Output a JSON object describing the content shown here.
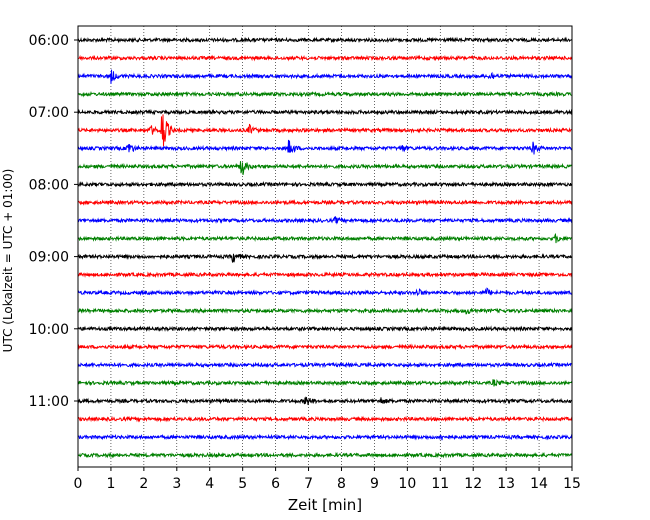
{
  "chart_data": {
    "type": "line",
    "title": "",
    "xlabel": "Zeit  [min]",
    "ylabel": "UTC (Lokalzeit = UTC + 01:00)",
    "xlim": [
      0,
      15
    ],
    "x_ticks": [
      "0",
      "1",
      "2",
      "3",
      "4",
      "5",
      "6",
      "7",
      "8",
      "9",
      "10",
      "11",
      "12",
      "13",
      "14",
      "15"
    ],
    "y_ticks": [
      "06:00",
      "07:00",
      "08:00",
      "09:00",
      "10:00",
      "11:00"
    ],
    "grid": "vertical dotted",
    "trace_interval_min": 15,
    "series_colors": [
      "#000000",
      "#ff0000",
      "#0000ff",
      "#008000"
    ],
    "traces": [
      {
        "start": "06:00",
        "color": "#000000",
        "events": []
      },
      {
        "start": "06:15",
        "color": "#ff0000",
        "events": []
      },
      {
        "start": "06:30",
        "color": "#0000ff",
        "events": [
          {
            "t": 1.0,
            "amp": 7
          },
          {
            "t": 12.5,
            "amp": 5
          }
        ]
      },
      {
        "start": "06:45",
        "color": "#008000",
        "events": []
      },
      {
        "start": "07:00",
        "color": "#000000",
        "events": []
      },
      {
        "start": "07:15",
        "color": "#ff0000",
        "events": [
          {
            "t": 2.55,
            "amp": 28
          },
          {
            "t": 2.2,
            "amp": 5
          },
          {
            "t": 5.2,
            "amp": 5
          }
        ]
      },
      {
        "start": "07:30",
        "color": "#0000ff",
        "events": [
          {
            "t": 1.5,
            "amp": 8
          },
          {
            "t": 6.4,
            "amp": 9
          },
          {
            "t": 9.8,
            "amp": 4
          },
          {
            "t": 13.8,
            "amp": 7
          }
        ]
      },
      {
        "start": "07:45",
        "color": "#008000",
        "events": [
          {
            "t": 4.95,
            "amp": 12
          }
        ]
      },
      {
        "start": "08:00",
        "color": "#000000",
        "events": []
      },
      {
        "start": "08:15",
        "color": "#ff0000",
        "events": []
      },
      {
        "start": "08:30",
        "color": "#0000ff",
        "events": [
          {
            "t": 7.8,
            "amp": 3
          }
        ]
      },
      {
        "start": "08:45",
        "color": "#008000",
        "events": [
          {
            "t": 14.5,
            "amp": 4
          }
        ]
      },
      {
        "start": "09:00",
        "color": "#000000",
        "events": [
          {
            "t": 4.7,
            "amp": 6
          }
        ]
      },
      {
        "start": "09:15",
        "color": "#ff0000",
        "events": []
      },
      {
        "start": "09:30",
        "color": "#0000ff",
        "events": [
          {
            "t": 10.3,
            "amp": 4
          },
          {
            "t": 12.4,
            "amp": 4
          }
        ]
      },
      {
        "start": "09:45",
        "color": "#008000",
        "events": [
          {
            "t": 11.8,
            "amp": 3
          }
        ]
      },
      {
        "start": "10:00",
        "color": "#000000",
        "events": []
      },
      {
        "start": "10:15",
        "color": "#ff0000",
        "events": []
      },
      {
        "start": "10:30",
        "color": "#0000ff",
        "events": []
      },
      {
        "start": "10:45",
        "color": "#008000",
        "events": [
          {
            "t": 12.6,
            "amp": 3
          }
        ]
      },
      {
        "start": "11:00",
        "color": "#000000",
        "events": [
          {
            "t": 6.9,
            "amp": 6
          },
          {
            "t": 9.2,
            "amp": 3
          }
        ]
      },
      {
        "start": "11:15",
        "color": "#ff0000",
        "events": []
      },
      {
        "start": "11:30",
        "color": "#0000ff",
        "events": [
          {
            "t": 11.0,
            "amp": 3
          }
        ]
      },
      {
        "start": "11:45",
        "color": "#008000",
        "events": []
      }
    ]
  }
}
